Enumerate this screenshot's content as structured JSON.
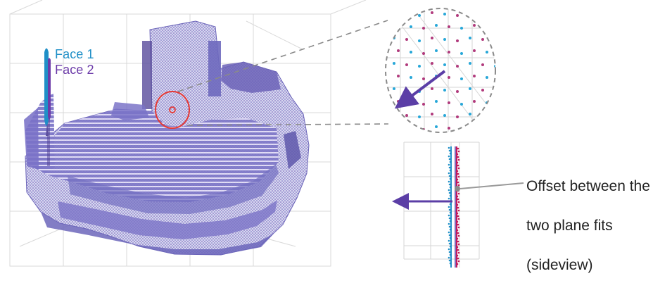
{
  "legend": {
    "face1_label": "Face 1",
    "face2_label": "Face 2",
    "face1_color": "#1f8fc7",
    "face2_color": "#6b3aa8"
  },
  "annotation": {
    "line1": "Offset between the",
    "line2": "two plane fits",
    "line3": "(sideview)"
  },
  "colors": {
    "pointcloud": "#6a63b8",
    "highlight_circle": "#e53935",
    "zoom_guides": "#8a8a8a",
    "offset_arrow": "#5b3ea6",
    "plane_line_face1": "#1f8fc7",
    "plane_line_face2": "#c2185b"
  }
}
